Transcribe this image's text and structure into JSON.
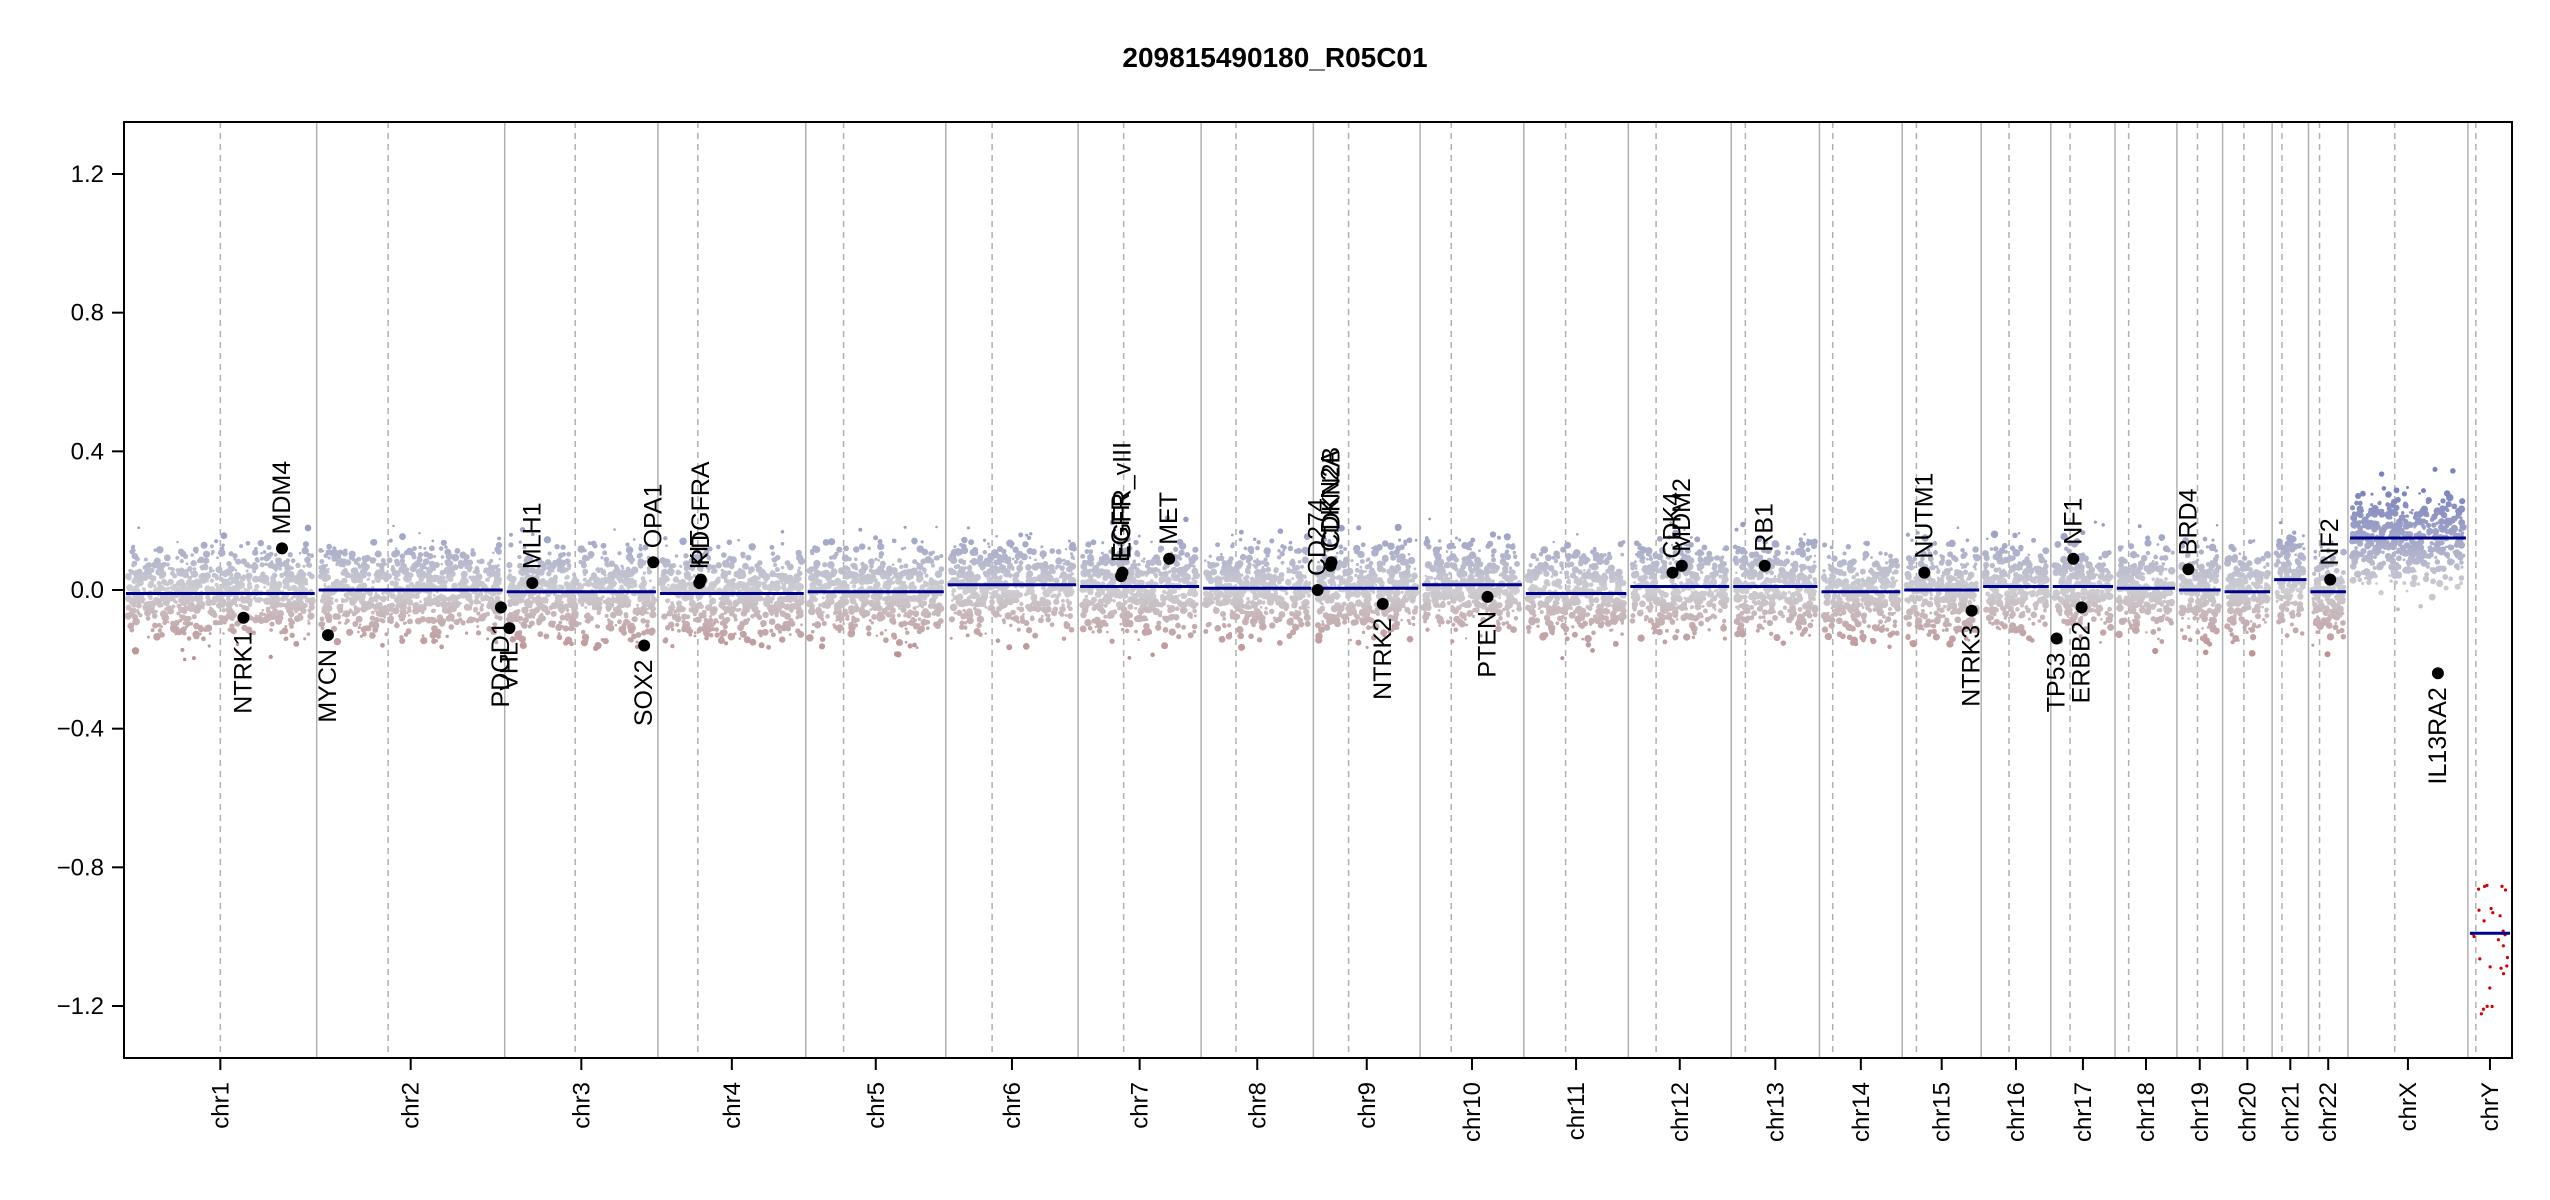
{
  "chart_data": {
    "type": "scatter",
    "title": "209815490180_R05C01",
    "xlabel": "",
    "ylabel": "",
    "ylim": [
      -1.35,
      1.35
    ],
    "yticks": [
      -1.2,
      -0.8,
      -0.4,
      0.0,
      0.4,
      0.8,
      1.2
    ],
    "ytick_labels": [
      "−1.2",
      "−0.8",
      "−0.4",
      "0.0",
      "0.4",
      "0.8",
      "1.2"
    ],
    "colors": {
      "gain": "#8f96c8",
      "loss": "#bf8484",
      "segment": "#00008b",
      "gene": "#000000",
      "grid": "#b0b0b0",
      "extreme_loss": "#d40000"
    },
    "chromosomes": [
      {
        "name": "chr1",
        "size": 249,
        "centromere": 0.5,
        "segments": [
          {
            "from": 0,
            "to": 1,
            "value": -0.01
          }
        ]
      },
      {
        "name": "chr2",
        "size": 243,
        "centromere": 0.38,
        "segments": [
          {
            "from": 0,
            "to": 1,
            "value": 0.0
          }
        ]
      },
      {
        "name": "chr3",
        "size": 198,
        "centromere": 0.46,
        "segments": [
          {
            "from": 0,
            "to": 1,
            "value": -0.005
          }
        ]
      },
      {
        "name": "chr4",
        "size": 191,
        "centromere": 0.27,
        "segments": [
          {
            "from": 0,
            "to": 1,
            "value": -0.01
          }
        ]
      },
      {
        "name": "chr5",
        "size": 181,
        "centromere": 0.27,
        "segments": [
          {
            "from": 0,
            "to": 1,
            "value": -0.005
          }
        ]
      },
      {
        "name": "chr6",
        "size": 171,
        "centromere": 0.35,
        "segments": [
          {
            "from": 0,
            "to": 1,
            "value": 0.015
          }
        ]
      },
      {
        "name": "chr7",
        "size": 159,
        "centromere": 0.37,
        "segments": [
          {
            "from": 0,
            "to": 1,
            "value": 0.01
          }
        ]
      },
      {
        "name": "chr8",
        "size": 145,
        "centromere": 0.31,
        "segments": [
          {
            "from": 0,
            "to": 1,
            "value": 0.005
          }
        ]
      },
      {
        "name": "chr9",
        "size": 138,
        "centromere": 0.33,
        "segments": [
          {
            "from": 0,
            "to": 1,
            "value": 0.005
          }
        ]
      },
      {
        "name": "chr10",
        "size": 134,
        "centromere": 0.3,
        "segments": [
          {
            "from": 0,
            "to": 1,
            "value": 0.015
          }
        ]
      },
      {
        "name": "chr11",
        "size": 135,
        "centromere": 0.4,
        "segments": [
          {
            "from": 0,
            "to": 1,
            "value": -0.01
          }
        ]
      },
      {
        "name": "chr12",
        "size": 133,
        "centromere": 0.27,
        "segments": [
          {
            "from": 0,
            "to": 1,
            "value": 0.01
          }
        ]
      },
      {
        "name": "chr13",
        "size": 114,
        "centromere": 0.16,
        "segments": [
          {
            "from": 0,
            "to": 1,
            "value": 0.01
          }
        ]
      },
      {
        "name": "chr14",
        "size": 107,
        "centromere": 0.16,
        "segments": [
          {
            "from": 0,
            "to": 1,
            "value": -0.005
          }
        ]
      },
      {
        "name": "chr15",
        "size": 102,
        "centromere": 0.18,
        "segments": [
          {
            "from": 0,
            "to": 1,
            "value": 0.0
          }
        ]
      },
      {
        "name": "chr16",
        "size": 90,
        "centromere": 0.4,
        "segments": [
          {
            "from": 0,
            "to": 1,
            "value": 0.01
          }
        ]
      },
      {
        "name": "chr17",
        "size": 83,
        "centromere": 0.3,
        "segments": [
          {
            "from": 0,
            "to": 1,
            "value": 0.01
          }
        ]
      },
      {
        "name": "chr18",
        "size": 80,
        "centromere": 0.22,
        "segments": [
          {
            "from": 0,
            "to": 1,
            "value": 0.005
          }
        ]
      },
      {
        "name": "chr19",
        "size": 59,
        "centromere": 0.45,
        "segments": [
          {
            "from": 0,
            "to": 1,
            "value": 0.0
          }
        ]
      },
      {
        "name": "chr20",
        "size": 64,
        "centromere": 0.43,
        "segments": [
          {
            "from": 0,
            "to": 1,
            "value": -0.005
          }
        ]
      },
      {
        "name": "chr21",
        "size": 47,
        "centromere": 0.27,
        "segments": [
          {
            "from": 0,
            "to": 1,
            "value": 0.03
          }
        ]
      },
      {
        "name": "chr22",
        "size": 51,
        "centromere": 0.28,
        "segments": [
          {
            "from": 0,
            "to": 1,
            "value": -0.005
          }
        ]
      },
      {
        "name": "chrX",
        "size": 155,
        "centromere": 0.39,
        "segments": [
          {
            "from": 0,
            "to": 1,
            "value": 0.15
          }
        ]
      },
      {
        "name": "chrY",
        "size": 57,
        "centromere": 0.18,
        "segments": [
          {
            "from": 0,
            "to": 1,
            "value": -0.99
          }
        ]
      }
    ],
    "genes": [
      {
        "name": "NTRK1",
        "chr": "chr1",
        "pos": 0.62,
        "value": -0.08,
        "label_side": "below"
      },
      {
        "name": "MDM4",
        "chr": "chr1",
        "pos": 0.82,
        "value": 0.12,
        "label_side": "above"
      },
      {
        "name": "MYCN",
        "chr": "chr2",
        "pos": 0.06,
        "value": -0.13,
        "label_side": "below"
      },
      {
        "name": "PDGD1",
        "chr": "chr2",
        "pos": 0.98,
        "value": -0.05,
        "label_side": "below"
      },
      {
        "name": "VHL",
        "chr": "chr3",
        "pos": 0.03,
        "value": -0.11,
        "label_side": "below"
      },
      {
        "name": "MLH1",
        "chr": "chr3",
        "pos": 0.18,
        "value": 0.02,
        "label_side": "above"
      },
      {
        "name": "SOX2",
        "chr": "chr3",
        "pos": 0.91,
        "value": -0.16,
        "label_side": "below"
      },
      {
        "name": "OPA1",
        "chr": "chr3",
        "pos": 0.97,
        "value": 0.08,
        "label_side": "above"
      },
      {
        "name": "KIT",
        "chr": "chr4",
        "pos": 0.28,
        "value": 0.02,
        "label_side": "above"
      },
      {
        "name": "PDGFRA",
        "chr": "chr4",
        "pos": 0.29,
        "value": 0.03,
        "label_side": "above"
      },
      {
        "name": "EGFR",
        "chr": "chr7",
        "pos": 0.35,
        "value": 0.04,
        "label_side": "above"
      },
      {
        "name": "EGFR_vIII",
        "chr": "chr7",
        "pos": 0.36,
        "value": 0.05,
        "label_side": "above"
      },
      {
        "name": "MET",
        "chr": "chr7",
        "pos": 0.74,
        "value": 0.09,
        "label_side": "above"
      },
      {
        "name": "CD274",
        "chr": "chr9",
        "pos": 0.04,
        "value": 0.0,
        "label_side": "above"
      },
      {
        "name": "CDKN2A",
        "chr": "chr9",
        "pos": 0.16,
        "value": 0.07,
        "label_side": "above"
      },
      {
        "name": "CDKN2B",
        "chr": "chr9",
        "pos": 0.17,
        "value": 0.08,
        "label_side": "above"
      },
      {
        "name": "NTRK2",
        "chr": "chr9",
        "pos": 0.65,
        "value": -0.04,
        "label_side": "below"
      },
      {
        "name": "PTEN",
        "chr": "chr10",
        "pos": 0.65,
        "value": -0.02,
        "label_side": "below"
      },
      {
        "name": "CDK4",
        "chr": "chr12",
        "pos": 0.43,
        "value": 0.05,
        "label_side": "above"
      },
      {
        "name": "MDM2",
        "chr": "chr12",
        "pos": 0.52,
        "value": 0.07,
        "label_side": "above"
      },
      {
        "name": "RB1",
        "chr": "chr13",
        "pos": 0.38,
        "value": 0.07,
        "label_side": "above"
      },
      {
        "name": "NUTM1",
        "chr": "chr15",
        "pos": 0.28,
        "value": 0.05,
        "label_side": "above"
      },
      {
        "name": "NTRK3",
        "chr": "chr15",
        "pos": 0.88,
        "value": -0.06,
        "label_side": "below"
      },
      {
        "name": "TP53",
        "chr": "chr17",
        "pos": 0.09,
        "value": -0.14,
        "label_side": "below"
      },
      {
        "name": "NF1",
        "chr": "chr17",
        "pos": 0.35,
        "value": 0.09,
        "label_side": "above"
      },
      {
        "name": "ERBB2",
        "chr": "chr17",
        "pos": 0.48,
        "value": -0.05,
        "label_side": "below"
      },
      {
        "name": "BRD4",
        "chr": "chr19",
        "pos": 0.25,
        "value": 0.06,
        "label_side": "above"
      },
      {
        "name": "NF2",
        "chr": "chr22",
        "pos": 0.55,
        "value": 0.03,
        "label_side": "above"
      },
      {
        "name": "IL13RA2",
        "chr": "chrX",
        "pos": 0.75,
        "value": -0.24,
        "label_side": "below"
      }
    ]
  }
}
